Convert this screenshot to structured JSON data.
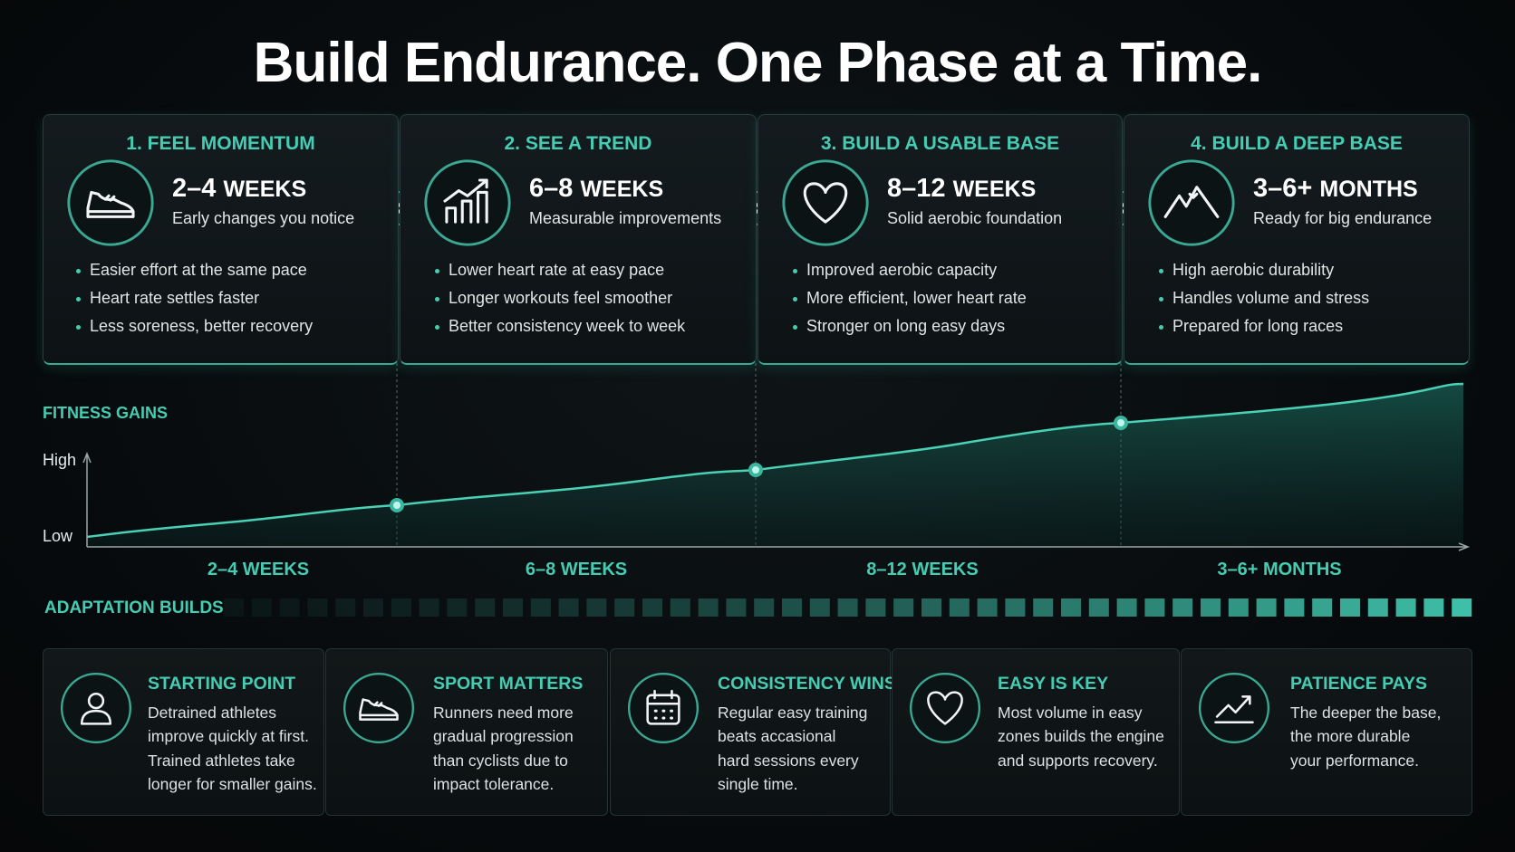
{
  "title": "Build Endurance. One Phase at a Time.",
  "phases": [
    {
      "heading": "1. FEEL MOMENTUM",
      "duration": "2–4",
      "unit": "WEEKS",
      "subtitle": "Early changes you notice",
      "bullets": [
        "Easier effort at the same pace",
        "Heart rate settles faster",
        "Less soreness, better recovery"
      ]
    },
    {
      "heading": "2. SEE A TREND",
      "duration": "6–8",
      "unit": "WEEKS",
      "subtitle": "Measurable improvements",
      "bullets": [
        "Lower heart rate at easy pace",
        "Longer workouts feel smoother",
        "Better consistency week to week"
      ]
    },
    {
      "heading": "3. BUILD A USABLE BASE",
      "duration": "8–12",
      "unit": "WEEKS",
      "subtitle": "Solid aerobic foundation",
      "bullets": [
        "Improved aerobic capacity",
        "More efficient, lower heart rate",
        "Stronger on long easy days"
      ]
    },
    {
      "heading": "4. BUILD A DEEP BASE",
      "duration": "3–6+",
      "unit": "MONTHS",
      "subtitle": "Ready for big endurance",
      "bullets": [
        "High aerobic durability",
        "Handles volume and stress",
        "Prepared for long races"
      ]
    }
  ],
  "graph": {
    "y_label": "FITNESS GAINS",
    "high": "High",
    "low": "Low",
    "x_labels": [
      "2–4 WEEKS",
      "6–8 WEEKS",
      "8–12 WEEKS",
      "3–6+ MONTHS"
    ]
  },
  "adaptation_label": "ADAPTATION BUILDS",
  "tips": [
    {
      "heading": "STARTING POINT",
      "lines": [
        "Detrained athletes",
        "improve quickly at first.",
        "Trained athletes take",
        "longer for smaller gains."
      ]
    },
    {
      "heading": "SPORT MATTERS",
      "lines": [
        "Runners need more",
        "gradual progression",
        "than cyclists due to",
        "impact tolerance."
      ]
    },
    {
      "heading": "CONSISTENCY WINS",
      "lines": [
        "Regular easy training",
        "beats accasional",
        "hard sessions every",
        "single time."
      ]
    },
    {
      "heading": "EASY IS KEY",
      "lines": [
        "Most volume in easy",
        "zones builds the engine",
        "and supports recovery."
      ]
    },
    {
      "heading": "PATIENCE PAYS",
      "lines": [
        "The deeper the base,",
        "the more durable",
        "your performance."
      ]
    }
  ]
}
